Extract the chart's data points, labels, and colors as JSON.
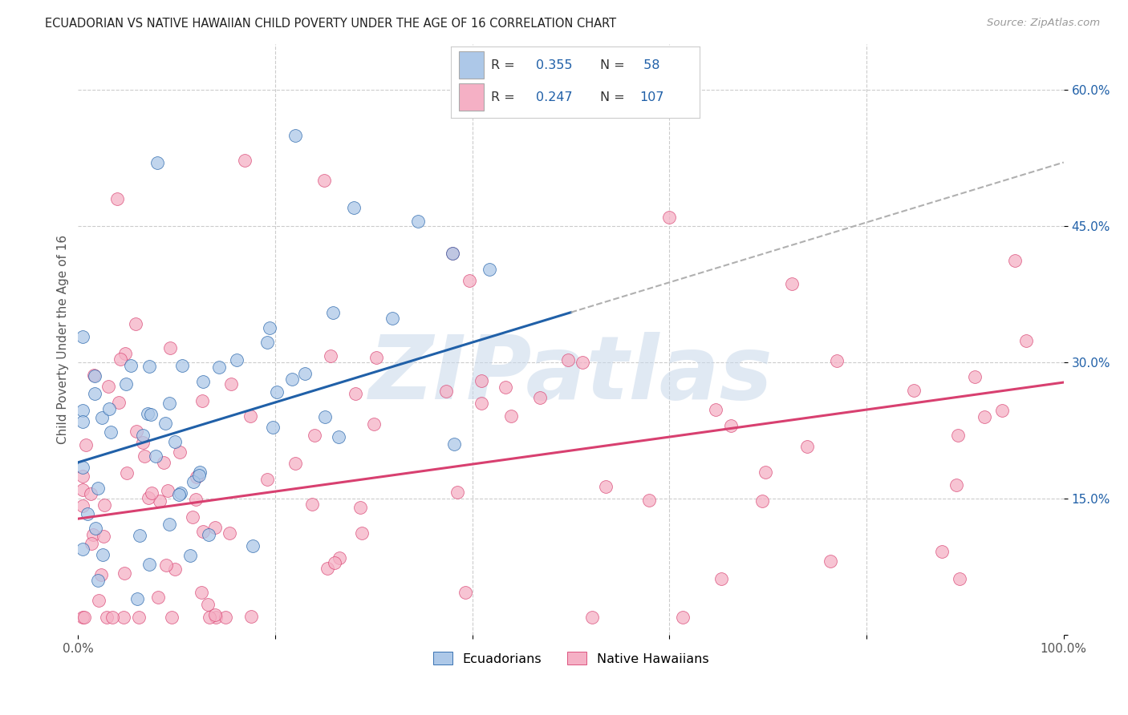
{
  "title": "ECUADORIAN VS NATIVE HAWAIIAN CHILD POVERTY UNDER THE AGE OF 16 CORRELATION CHART",
  "source": "Source: ZipAtlas.com",
  "ylabel": "Child Poverty Under the Age of 16",
  "xlim": [
    0.0,
    1.0
  ],
  "ylim": [
    0.0,
    0.65
  ],
  "grid_color": "#cccccc",
  "background_color": "#ffffff",
  "ecuadorian_fill": "#adc8e8",
  "native_hawaiian_fill": "#f5b0c5",
  "ecuadorian_line_color": "#2060a8",
  "native_hawaiian_line_color": "#d84070",
  "dashed_line_color": "#b0b0b0",
  "stat_text_color": "#2060a8",
  "R_ecu": 0.355,
  "N_ecu": 58,
  "R_nh": 0.247,
  "N_nh": 107,
  "watermark": "ZIPatlas",
  "watermark_color": "#c8d8ea",
  "ecu_line_x0": 0.0,
  "ecu_line_y0": 0.19,
  "ecu_line_x1": 0.5,
  "ecu_line_y1": 0.355,
  "nh_line_x0": 0.0,
  "nh_line_y0": 0.128,
  "nh_line_x1": 1.0,
  "nh_line_y1": 0.278
}
